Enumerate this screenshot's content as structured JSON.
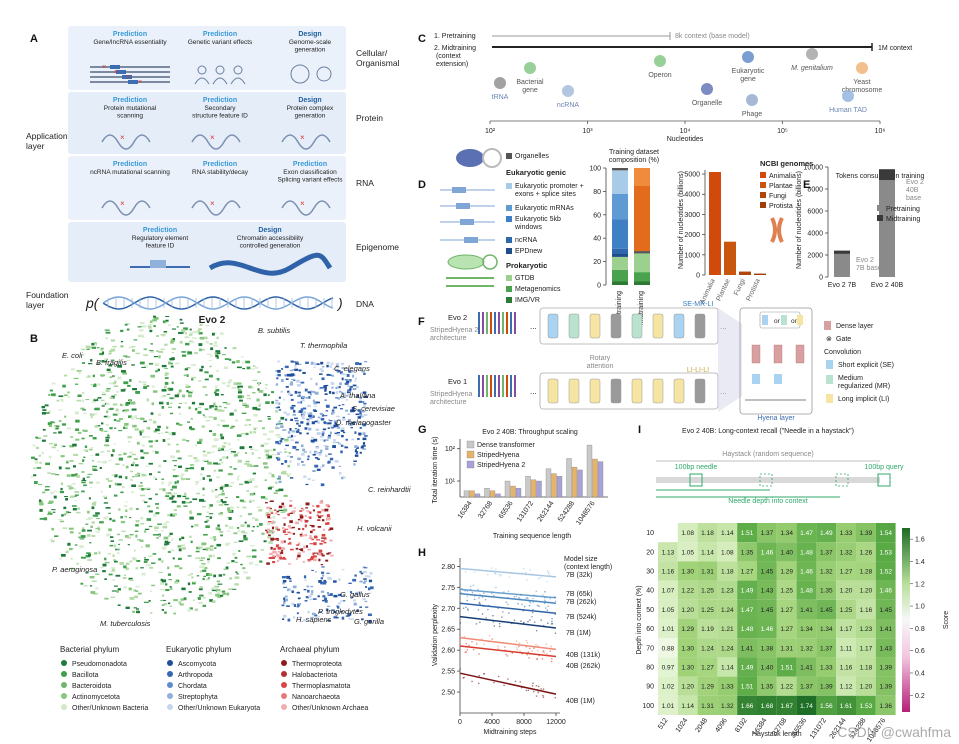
{
  "colors": {
    "predict_blue": "#3a9ad9",
    "design_blue": "#1f5f9e",
    "bact_dark": "#1f7a3a",
    "bact_mid": "#3f9f4b",
    "bact_light": "#86c77d",
    "euk_dark": "#1f4e9c",
    "euk_light": "#8fb0db",
    "arch_dark": "#8f1c1c",
    "arch_mid": "#d94545",
    "arch_light": "#f0aeb0",
    "dense": "#d8a0a0",
    "se": "#a9d3f0",
    "mr": "#b9e3cf",
    "li": "#f6e4a3",
    "heat_high": "#1c6b26",
    "heat_low": "#d64d9b"
  },
  "panel_a": {
    "label": "A",
    "rows": [
      {
        "name": "Cellular/\nOrganismal",
        "items": [
          {
            "kind": "Prediction",
            "text": "Gene/lncRNA essentiality"
          },
          {
            "kind": "Prediction",
            "text": "Genetic variant effects"
          },
          {
            "kind": "Design",
            "text": "Genome-scale\ngeneration"
          }
        ]
      },
      {
        "name": "Protein",
        "items": [
          {
            "kind": "Prediction",
            "text": "Protein mutational\nscanning"
          },
          {
            "kind": "Prediction",
            "text": "Secondary\nstructure feature ID"
          },
          {
            "kind": "Design",
            "text": "Protein complex\ngeneration"
          }
        ]
      },
      {
        "name": "RNA",
        "items": [
          {
            "kind": "Prediction",
            "text": "ncRNA mutational scanning"
          },
          {
            "kind": "Prediction",
            "text": "RNA stability/decay"
          },
          {
            "kind": "Prediction",
            "text": "Exon classification\nSplicing variant effects"
          }
        ]
      },
      {
        "name": "Epigenome",
        "items": [
          {
            "kind": "Prediction",
            "text": "Regulatory element\nfeature ID"
          },
          {
            "kind": "Design",
            "text": "Chromatin accessibility\ncontrolled generation"
          }
        ]
      }
    ],
    "application_layer": "Application\nlayer",
    "foundation_layer": "Foundation\nlayer",
    "p_open": "p(",
    "p_close": ")",
    "dna": "DNA",
    "model": "Evo 2"
  },
  "panel_b": {
    "label": "B",
    "species": [
      "B. subtilis",
      "B. fragilis",
      "E. coli",
      "T. thermophila",
      "C. elegans",
      "A. thaliana",
      "S. cerevisiae",
      "D. melanogaster",
      "C. reinhardtii",
      "H. volcanii",
      "P. aeruginosa",
      "G. gallus",
      "G. gorilla",
      "H. sapiens",
      "P. troglodytes",
      "M. tuberculosis"
    ],
    "legend": [
      {
        "title": "Bacterial phylum",
        "items": [
          "Pseudomonadota",
          "Bacillota",
          "Bacteroidota",
          "Actinomycetota",
          "Other/Unknown Bacteria"
        ]
      },
      {
        "title": "Eukaryotic phylum",
        "items": [
          "Ascomycota",
          "Arthropoda",
          "Chordata",
          "Streptophyta",
          "Other/Unknown Eukaryota"
        ]
      },
      {
        "title": "Archaeal phylum",
        "items": [
          "Thermoproteota",
          "Halobacteriota",
          "Thermoplasmatota",
          "Nanoarchaeota",
          "Other/Unknown Archaea"
        ]
      }
    ]
  },
  "panel_c": {
    "label": "C",
    "stage1": "1.  Pretraining",
    "stage2": "2.  Midtraining\n     (context\n     extension)",
    "ctx8k": "8k context (base model)",
    "ctx1m": "1M context",
    "items": [
      "tRNA",
      "Bacterial\ngene",
      "ncRNA",
      "Operon",
      "Organelle",
      "Eukaryotic\ngene",
      "Phage",
      "M. genitalium",
      "Yeast\nchromosome",
      "Human TAD"
    ],
    "xlabel": "Nucleotides",
    "ticks": [
      "10²",
      "10³",
      "10⁴",
      "10⁵",
      "10⁶"
    ]
  },
  "panel_d": {
    "label": "D",
    "organelles": "Organelles",
    "euk_title": "Eukaryotic genic",
    "euk_items": [
      "Eukaryotic promoter +\nexons + splice sites",
      "Eukaryotic mRNAs",
      "Eukaryotic 5kb\nwindows",
      "ncRNA",
      "EPDnew"
    ],
    "prok_title": "Prokaryotic",
    "prok_items": [
      "GTDB",
      "Metagenomics",
      "IMG/VR"
    ],
    "comp_title": "Training dataset\ncomposition (%)",
    "ncbi_title": "NCBI genomes",
    "ncbi_items": [
      "Animalia",
      "Plantae",
      "Fungi",
      "Protista"
    ],
    "ncbi_ylabel": "Number of nucleotides (billions)"
  },
  "panel_e": {
    "label": "E",
    "title": "Tokens consumed in training",
    "pre": "Pretraining",
    "mid": "Midtraining",
    "ann40": "Evo 2\n40B\nbase",
    "ann7": "Evo 2\n7B base",
    "ylabel": "Number of nucleotides (billions)"
  },
  "panel_f": {
    "label": "F",
    "evo2": "Evo 2",
    "evo2_arch": "StripedHyena 2\narchitecture",
    "evo1": "Evo 1",
    "evo1_arch": "StripedHyena\narchitecture",
    "rotary": "Rotary\nattention",
    "se_mr_li": "SE-MR-LI",
    "li_li_li": "LI-LI-LI",
    "hyena": "Hyena layer",
    "or": "or",
    "legend": [
      "Dense layer",
      "Gate",
      "Convolution",
      "Short explicit (SE)",
      "Medium\nregularized (MR)",
      "Long implicit (LI)"
    ]
  },
  "panel_g": {
    "label": "G"
  },
  "panel_h": {
    "label": "H"
  },
  "panel_i": {
    "label": "I",
    "title": "Evo 2 40B: Long-context recall (\"Needle in a haystack\")",
    "haystack": "Haystack (random sequence)",
    "needle": "100bp needle",
    "query": "100bp query",
    "depth": "Needle depth into context"
  },
  "chart_data": [
    {
      "id": "D_composition",
      "type": "bar",
      "title": "Training dataset composition (%)",
      "categories": [
        "Pretraining",
        "Midtraining"
      ],
      "ylim": [
        0,
        100
      ],
      "yticks": [
        "0",
        "20",
        "40",
        "60",
        "80",
        "100"
      ],
      "series": [
        {
          "name": "IMG/VR",
          "values": [
            3,
            3
          ]
        },
        {
          "name": "Metagenomics",
          "values": [
            10,
            8
          ]
        },
        {
          "name": "GTDB",
          "values": [
            11,
            16
          ]
        },
        {
          "name": "EPDnew",
          "values": [
            3,
            0
          ]
        },
        {
          "name": "ncRNA",
          "values": [
            4,
            0
          ]
        },
        {
          "name": "Eukaryotic 5kb windows",
          "values": [
            25,
            0
          ]
        },
        {
          "name": "Eukaryotic mRNAs",
          "values": [
            22,
            0
          ]
        },
        {
          "name": "Eukaryotic promoter + exons + splice sites",
          "values": [
            20,
            0
          ]
        },
        {
          "name": "Organelles",
          "values": [
            2,
            2
          ]
        },
        {
          "name": "NCBI genomes",
          "values": [
            0,
            71
          ]
        }
      ]
    },
    {
      "id": "D_ncbi",
      "type": "bar",
      "title": "NCBI genomes",
      "ylabel": "Number of nucleotides (billions)",
      "categories": [
        "Animalia",
        "Plantae",
        "Fungi",
        "Protista"
      ],
      "values": [
        5100,
        1650,
        170,
        70
      ],
      "ylim": [
        0,
        5000
      ],
      "yticks": [
        "0",
        "1000",
        "2000",
        "3000",
        "4000",
        "5000"
      ]
    },
    {
      "id": "E_tokens",
      "type": "bar",
      "title": "Tokens consumed in training",
      "ylabel": "Number of nucleotides (billions)",
      "categories": [
        "Evo 2 7B",
        "Evo 2 40B"
      ],
      "series": [
        {
          "name": "Pretraining",
          "values": [
            2100,
            8800
          ]
        },
        {
          "name": "Midtraining",
          "values": [
            300,
            1000
          ]
        }
      ],
      "ylim": [
        0,
        10000
      ],
      "yticks": [
        "0",
        "2000",
        "4000",
        "6000",
        "8000",
        "10000"
      ]
    },
    {
      "id": "G_throughput",
      "type": "bar",
      "title": "Evo 2 40B: Throughput scaling",
      "xlabel": "Training sequence length",
      "ylabel": "Total iteration time (s)",
      "categories": [
        "16384",
        "32768",
        "65536",
        "131072",
        "262144",
        "524288",
        "1048576"
      ],
      "series": [
        {
          "name": "Dense transformer",
          "values": [
            5,
            6,
            10,
            14,
            24,
            50,
            130
          ]
        },
        {
          "name": "StripedHyena",
          "values": [
            5,
            5,
            7,
            11,
            17,
            27,
            48
          ]
        },
        {
          "name": "StripedHyena 2",
          "values": [
            4,
            4,
            6,
            10,
            14,
            22,
            40
          ]
        }
      ],
      "yticks": [
        "10¹",
        "10²"
      ],
      "yscale": "log"
    },
    {
      "id": "H_perplexity",
      "type": "line",
      "xlabel": "Midtraining steps",
      "ylabel": "Validation perplexity",
      "legend_title": "Model size\n(context length)",
      "xlim": [
        0,
        12500
      ],
      "ylim": [
        2.45,
        2.82
      ],
      "xticks": [
        "0",
        "4000",
        "8000",
        "12000"
      ],
      "yticks": [
        "2.50",
        "2.55",
        "2.60",
        "2.65",
        "2.70",
        "2.75",
        "2.80"
      ],
      "series": [
        {
          "name": "7B (32k)",
          "start": 2.795,
          "end": 2.775
        },
        {
          "name": "7B (65k)",
          "start": 2.745,
          "end": 2.725
        },
        {
          "name": "7B (262k)",
          "start": 2.735,
          "end": 2.712
        },
        {
          "name": "7B (524k)",
          "start": 2.712,
          "end": 2.688
        },
        {
          "name": "7B (1M)",
          "start": 2.68,
          "end": 2.653
        },
        {
          "name": "40B (131k)",
          "start": 2.63,
          "end": 2.602
        },
        {
          "name": "40B (262k)",
          "start": 2.61,
          "end": 2.585
        },
        {
          "name": "40B (1M)",
          "start": 2.545,
          "end": 2.495
        }
      ]
    },
    {
      "id": "I_heatmap",
      "type": "heatmap",
      "xlabel": "Haystack length",
      "ylabel": "Depth into context (%)",
      "colorbar_label": "Score",
      "colorbar_ticks": [
        "0.2",
        "0.4",
        "0.6",
        "0.8",
        "1.0",
        "1.2",
        "1.4",
        "1.6"
      ],
      "x": [
        "512",
        "1024",
        "2048",
        "4096",
        "8192",
        "16384",
        "32768",
        "65536",
        "131072",
        "262144",
        "524288",
        "1048576"
      ],
      "y": [
        "10",
        "20",
        "30",
        "40",
        "50",
        "60",
        "70",
        "80",
        "90",
        "100"
      ],
      "values": [
        [
          "",
          "1.08",
          "1.18",
          "1.14",
          "1.51",
          "1.37",
          "1.34",
          "1.47",
          "1.49",
          "1.33",
          "1.39",
          "1.54"
        ],
        [
          "1.13",
          "1.05",
          "1.14",
          "1.08",
          "1.35",
          "1.46",
          "1.40",
          "1.48",
          "1.37",
          "1.32",
          "1.26",
          "1.53"
        ],
        [
          "1.16",
          "1.30",
          "1.31",
          "1.18",
          "1.27",
          "1.45",
          "1.29",
          "1.46",
          "1.32",
          "1.27",
          "1.28",
          "1.52"
        ],
        [
          "1.07",
          "1.22",
          "1.25",
          "1.23",
          "1.49",
          "1.43",
          "1.25",
          "1.48",
          "1.35",
          "1.20",
          "1.20",
          "1.46"
        ],
        [
          "1.05",
          "1.20",
          "1.25",
          "1.24",
          "1.47",
          "1.45",
          "1.27",
          "1.41",
          "1.45",
          "1.25",
          "1.16",
          "1.45"
        ],
        [
          "1.01",
          "1.29",
          "1.19",
          "1.21",
          "1.48",
          "1.46",
          "1.27",
          "1.34",
          "1.34",
          "1.17",
          "1.23",
          "1.41"
        ],
        [
          "0.88",
          "1.30",
          "1.24",
          "1.24",
          "1.41",
          "1.38",
          "1.31",
          "1.32",
          "1.37",
          "1.11",
          "1.17",
          "1.43"
        ],
        [
          "0.97",
          "1.30",
          "1.27",
          "1.14",
          "1.49",
          "1.40",
          "1.51",
          "1.41",
          "1.33",
          "1.16",
          "1.18",
          "1.39"
        ],
        [
          "1.02",
          "1.20",
          "1.29",
          "1.33",
          "1.51",
          "1.35",
          "1.22",
          "1.37",
          "1.39",
          "1.12",
          "1.20",
          "1.39"
        ],
        [
          "1.01",
          "1.14",
          "1.31",
          "1.32",
          "1.66",
          "1.68",
          "1.67",
          "1.74",
          "1.56",
          "1.61",
          "1.53",
          "1.36"
        ]
      ]
    }
  ],
  "watermark": "CSDN @cwahfma"
}
